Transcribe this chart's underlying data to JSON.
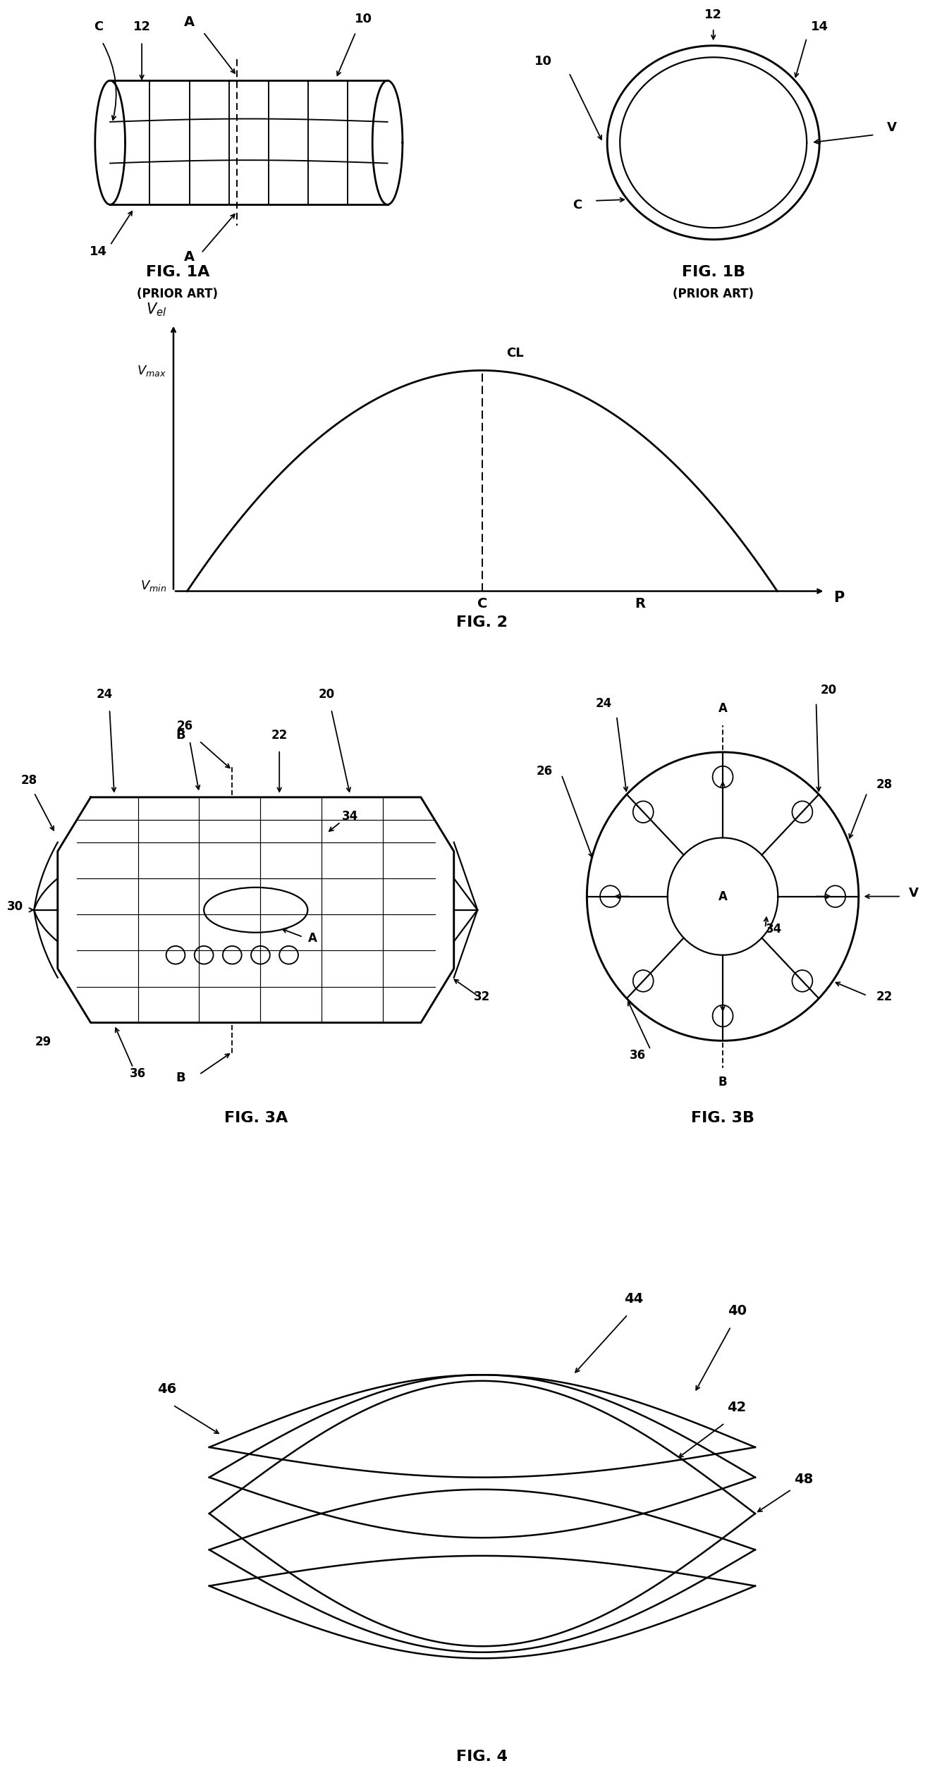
{
  "bg_color": "#ffffff",
  "fig_width": 13.38,
  "fig_height": 26.55,
  "lc": "#000000",
  "lw": 1.6
}
